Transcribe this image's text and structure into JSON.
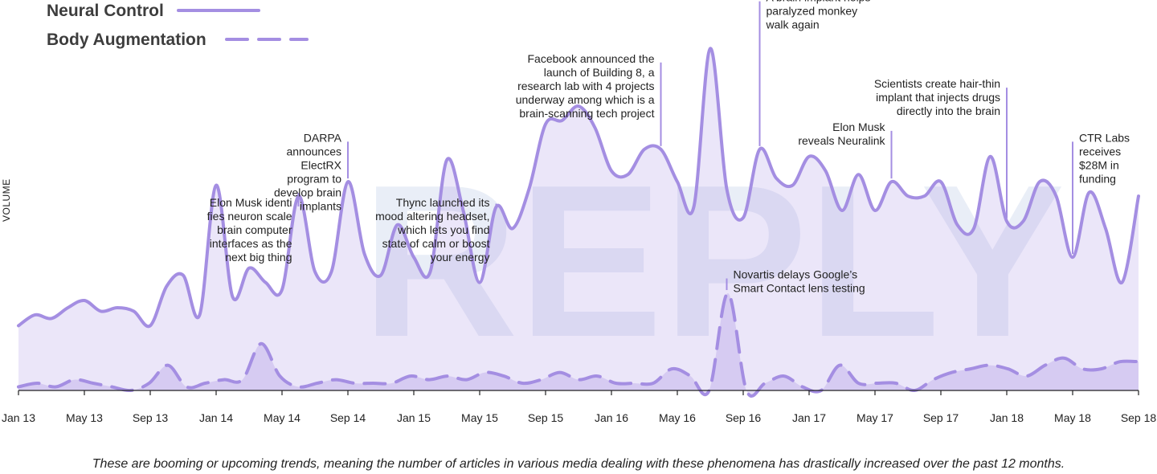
{
  "chart_data": {
    "type": "area",
    "title": "",
    "xlabel": "",
    "ylabel": "VOLUME",
    "watermark": "REPLY",
    "ylim": [
      0,
      100
    ],
    "grid": false,
    "legend_placement": "top-left",
    "x_ticks": [
      "Jan 13",
      "May 13",
      "Sep 13",
      "Jan 14",
      "May 14",
      "Sep 14",
      "Jan 15",
      "May 15",
      "Sep 15",
      "Jan 16",
      "May 16",
      "Sep 16",
      "Jan 17",
      "May 17",
      "Sep 17",
      "Jan 18",
      "May 18",
      "Sep 18"
    ],
    "months": [
      "Jan 13",
      "Feb 13",
      "Mar 13",
      "Apr 13",
      "May 13",
      "Jun 13",
      "Jul 13",
      "Aug 13",
      "Sep 13",
      "Oct 13",
      "Nov 13",
      "Dec 13",
      "Jan 14",
      "Feb 14",
      "Mar 14",
      "Apr 14",
      "May 14",
      "Jun 14",
      "Jul 14",
      "Aug 14",
      "Sep 14",
      "Oct 14",
      "Nov 14",
      "Dec 14",
      "Jan 15",
      "Feb 15",
      "Mar 15",
      "Apr 15",
      "May 15",
      "Jun 15",
      "Jul 15",
      "Aug 15",
      "Sep 15",
      "Oct 15",
      "Nov 15",
      "Dec 15",
      "Jan 16",
      "Feb 16",
      "Mar 16",
      "Apr 16",
      "May 16",
      "Jun 16",
      "Jul 16",
      "Aug 16",
      "Sep 16",
      "Oct 16",
      "Nov 16",
      "Dec 16",
      "Jan 17",
      "Feb 17",
      "Mar 17",
      "Apr 17",
      "May 17",
      "Jun 17",
      "Jul 17",
      "Aug 17",
      "Sep 17",
      "Oct 17",
      "Nov 17",
      "Dec 17",
      "Jan 18",
      "Feb 18",
      "Mar 18",
      "Apr 18",
      "May 18",
      "Jun 18",
      "Jul 18",
      "Aug 18",
      "Sep 18"
    ],
    "series": [
      {
        "name": "Neural Control",
        "color": "#a48ee2",
        "dash": "solid",
        "values": [
          18,
          21,
          20,
          23,
          25,
          22,
          23,
          22,
          18,
          29,
          32,
          21,
          57,
          26,
          34,
          30,
          28,
          54,
          33,
          33,
          58,
          38,
          32,
          46,
          37,
          33,
          64,
          50,
          30,
          51,
          45,
          56,
          74,
          75,
          79,
          73,
          61,
          60,
          67,
          67,
          58,
          51,
          95,
          56,
          48,
          67,
          59,
          57,
          65,
          61,
          50,
          60,
          50,
          58,
          54,
          54,
          58,
          46,
          45,
          65,
          47,
          47,
          58,
          54,
          37,
          55,
          45,
          30,
          54
        ]
      },
      {
        "name": "Body Augmentation",
        "color": "#a48ee2",
        "dash": "dashed",
        "values": [
          1,
          2,
          1,
          3,
          2,
          1,
          0,
          2,
          7,
          1,
          2,
          3,
          3,
          13,
          4,
          1,
          2,
          3,
          2,
          2,
          2,
          4,
          3,
          4,
          3,
          5,
          4,
          2,
          3,
          5,
          3,
          4,
          2,
          2,
          2,
          6,
          4,
          0,
          27,
          0,
          2,
          4,
          1,
          0,
          7,
          2,
          2,
          2,
          0,
          3,
          5,
          6,
          7,
          6,
          4,
          7,
          9,
          6,
          6,
          8,
          8
        ]
      }
    ],
    "body_x_fractions_note": "Body Augmentation values correspond to months Jan 13 through Sep 18 resampled to 61 points",
    "annotations": [
      {
        "month": "Jun 14",
        "series": "Neural Control",
        "lines": [
          "Elon Musk identi",
          "fies neuron scale",
          "brain computer",
          "interfaces as the",
          "next big thing"
        ],
        "align": "end",
        "label_top": 48
      },
      {
        "month": "Sep 14",
        "series": "Neural Control",
        "lines": [
          "DARPA",
          "announces",
          "ElectRX",
          "program to",
          "develop brain",
          "implants"
        ],
        "align": "end",
        "label_top": 66
      },
      {
        "month": "Jun 15",
        "series": "Neural Control",
        "lines": [
          "Thync launched its",
          "mood altering headset,",
          "which lets you find",
          "state of calm or boost",
          "your energy"
        ],
        "align": "end",
        "label_top": 48
      },
      {
        "month": "Apr 16",
        "series": "Neural Control",
        "lines": [
          "Facebook announced the",
          "launch of Building 8, a",
          "research lab with 4 projects",
          "underway among which is a",
          "brain-scanning tech project"
        ],
        "align": "end",
        "label_top": 88
      },
      {
        "month": "Oct 16",
        "series": "Neural Control",
        "lines": [
          "A brain implant helps",
          "paralyzed monkey",
          "walk again"
        ],
        "align": "start",
        "label_top": 105
      },
      {
        "month": "Aug 16",
        "series": "Body Augmentation",
        "lines": [
          "Novartis delays Google’s",
          "Smart Contact lens testing"
        ],
        "align": "start",
        "label_top": 28
      },
      {
        "month": "Jun 17",
        "series": "Neural Control",
        "lines": [
          "Elon Musk",
          "reveals Neuralink"
        ],
        "align": "end",
        "label_top": 69
      },
      {
        "month": "Jan 18",
        "series": "Neural Control",
        "lines": [
          "Scientists create hair-thin",
          "implant that injects drugs",
          "directly into the brain"
        ],
        "align": "end",
        "label_top": 81
      },
      {
        "month": "May 18",
        "series": "Neural Control",
        "lines": [
          "CTR Labs",
          "receives",
          "$28M in",
          "funding"
        ],
        "align": "start",
        "label_top": 66
      }
    ]
  },
  "footnote": "These are booming or upcoming trends, meaning the number of articles in various media dealing with these phenomena has drastically increased over the past 12 months."
}
